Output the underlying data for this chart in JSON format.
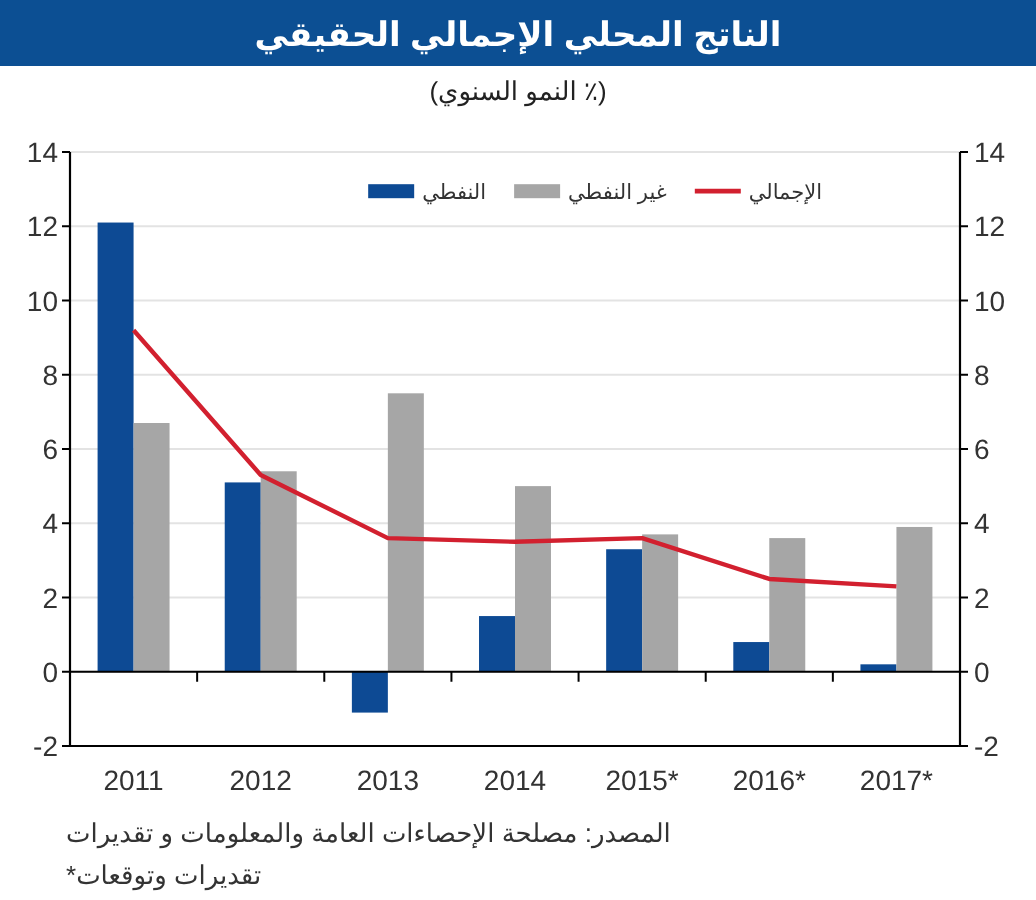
{
  "chart_data": {
    "type": "bar",
    "title": "الناتج المحلي الإجمالي الحقيقي",
    "subtitle": "(٪ النمو السنوي)",
    "categories": [
      "2011",
      "2012",
      "2013",
      "2014",
      "2015*",
      "2016*",
      "2017*"
    ],
    "series": [
      {
        "name": "النفطي",
        "color": "#0d4a94",
        "values": [
          12.1,
          5.1,
          -1.1,
          1.5,
          3.3,
          0.8,
          0.2
        ]
      },
      {
        "name": "غير النفطي",
        "color": "#a6a6a6",
        "values": [
          6.7,
          5.4,
          7.5,
          5.0,
          3.7,
          3.6,
          3.9
        ]
      },
      {
        "name": "الإجمالي",
        "type": "line",
        "color": "#d2202f",
        "values": [
          9.2,
          5.3,
          3.6,
          3.5,
          3.6,
          2.5,
          2.3
        ]
      }
    ],
    "ylim": [
      -2,
      14
    ],
    "yticks": [
      -2,
      0,
      2,
      4,
      6,
      8,
      10,
      12,
      14
    ],
    "y2lim": [
      -2,
      14
    ],
    "y2ticks": [
      -2,
      0,
      2,
      4,
      6,
      8,
      10,
      12,
      14
    ],
    "grid": "y",
    "legend": "top right",
    "annotations": [
      "المصدر: مصلحة الإحصاءات العامة والمعلومات و تقديرات",
      "*تقديرات وتوقعات"
    ]
  }
}
